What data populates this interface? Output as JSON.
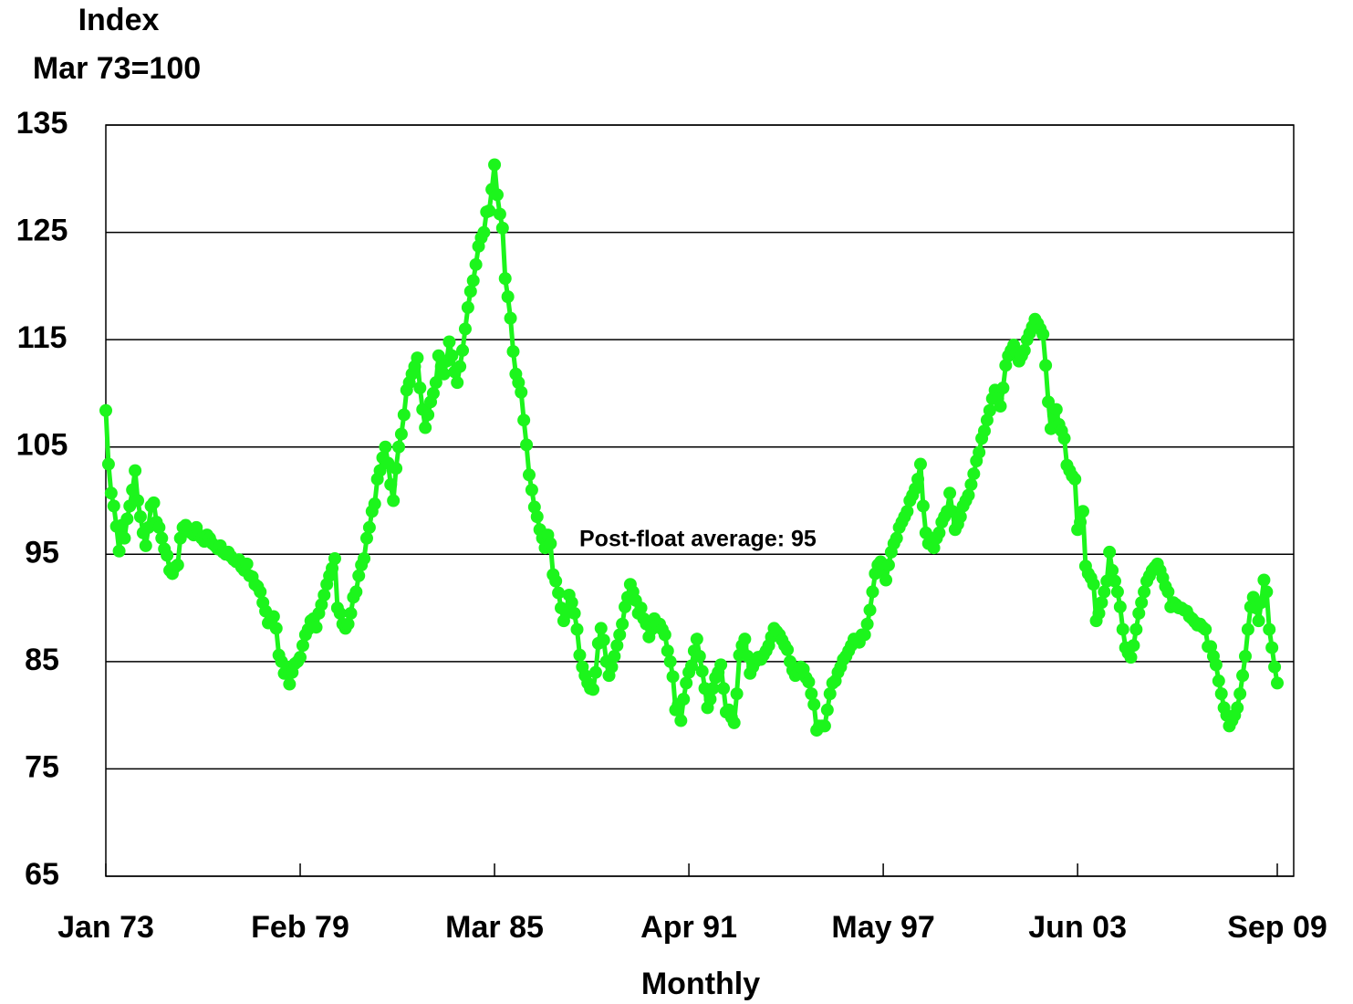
{
  "chart_data": {
    "type": "line",
    "y_title_lines": [
      "Index",
      "Mar 73=100"
    ],
    "x_title": "Monthly",
    "annotation": "Post-float average: 95",
    "color": "#1cf51c",
    "grid": true,
    "ylim": [
      65,
      135
    ],
    "yticks": [
      65,
      75,
      85,
      95,
      105,
      115,
      125,
      135
    ],
    "categories": [
      "Jan 73",
      null,
      null,
      null,
      null,
      null,
      null,
      null,
      null,
      null,
      null,
      null,
      null,
      null,
      null,
      null,
      null,
      null,
      null,
      null,
      null,
      null,
      null,
      null,
      null,
      null,
      null,
      null,
      null,
      null,
      null,
      null,
      null,
      null,
      null,
      null,
      null,
      null,
      null,
      null,
      null,
      null,
      null,
      null,
      null,
      null,
      null,
      null,
      null,
      null,
      null,
      null,
      null,
      null,
      null,
      null,
      null,
      null,
      null,
      null,
      null,
      null,
      null,
      null,
      null,
      null,
      null,
      null,
      null,
      null,
      null,
      null,
      null,
      "Feb 79",
      null,
      null,
      null,
      null,
      null,
      null,
      null,
      null,
      null,
      null,
      null,
      null,
      null,
      null,
      null,
      null,
      null,
      null,
      null,
      null,
      null,
      null,
      null,
      null,
      null,
      null,
      null,
      null,
      null,
      null,
      null,
      null,
      null,
      null,
      null,
      null,
      null,
      null,
      null,
      null,
      null,
      null,
      null,
      null,
      null,
      null,
      null,
      null,
      null,
      null,
      null,
      null,
      null,
      null,
      null,
      null,
      null,
      null,
      null,
      null,
      null,
      null,
      null,
      null,
      null,
      null,
      null,
      null,
      null,
      null,
      null,
      null,
      "Mar 85",
      null,
      null,
      null,
      null,
      null,
      null,
      null,
      null,
      null,
      null,
      null,
      null,
      null,
      null,
      null,
      null,
      null,
      null,
      null,
      null,
      null,
      null,
      null,
      null,
      null,
      null,
      null,
      null,
      null,
      null,
      null,
      null,
      null,
      null,
      null,
      null,
      null,
      null,
      null,
      null,
      null,
      null,
      null,
      null,
      null,
      null,
      null,
      null,
      null,
      null,
      null,
      null,
      null,
      null,
      null,
      null,
      null,
      null,
      null,
      null,
      null,
      null,
      null,
      null,
      null,
      null,
      null,
      null,
      null,
      null,
      null,
      null,
      "Apr 91",
      null,
      null,
      null,
      null,
      null,
      null,
      null,
      null,
      null,
      null,
      null,
      null,
      null,
      null,
      null,
      null,
      null,
      null,
      null,
      null,
      null,
      null,
      null,
      null,
      null,
      null,
      null,
      null,
      null,
      null,
      null,
      null,
      null,
      null,
      null,
      null,
      null,
      null,
      null,
      null,
      null,
      null,
      null,
      null,
      null,
      null,
      null,
      null,
      null,
      null,
      null,
      null,
      null,
      null,
      null,
      null,
      null,
      null,
      null,
      null,
      null,
      null,
      null,
      null,
      null,
      null,
      null,
      null,
      null,
      null,
      null,
      null,
      "May 97",
      null,
      null,
      null,
      null,
      null,
      null,
      null,
      null,
      null,
      null,
      null,
      null,
      null,
      null,
      null,
      null,
      null,
      null,
      null,
      null,
      null,
      null,
      null,
      null,
      null,
      null,
      null,
      null,
      null,
      null,
      null,
      null,
      null,
      null,
      null,
      null,
      null,
      null,
      null,
      null,
      null,
      null,
      null,
      null,
      null,
      null,
      null,
      null,
      null,
      null,
      null,
      null,
      null,
      null,
      null,
      null,
      null,
      null,
      null,
      null,
      null,
      null,
      null,
      null,
      null,
      null,
      null,
      null,
      null,
      null,
      null,
      null,
      "Jun 03",
      null,
      null,
      null,
      null,
      null,
      null,
      null,
      null,
      null,
      null,
      null,
      null,
      null,
      null,
      null,
      null,
      null,
      null,
      null,
      null,
      null,
      null,
      null,
      null,
      null,
      null,
      null,
      null,
      null,
      null,
      null,
      null,
      null,
      null,
      null,
      null,
      null,
      null,
      null,
      null,
      null,
      null,
      null,
      null,
      null,
      null,
      null,
      null,
      null,
      null,
      null,
      null,
      null,
      null,
      null,
      null,
      null,
      null,
      null,
      null,
      null,
      null,
      null,
      null,
      null,
      null,
      null,
      null,
      null,
      null,
      null,
      null,
      null,
      null,
      "Sep 09"
    ],
    "values": [
      108.4,
      103.4,
      100.7,
      99.5,
      97.6,
      95.3,
      97.7,
      96.5,
      98.3,
      99.5,
      101,
      102.8,
      100,
      98.5,
      97,
      95.8,
      97.5,
      99.5,
      99.8,
      98,
      97.5,
      96.5,
      95.5,
      94.9,
      93.5,
      93.2,
      93.8,
      94,
      96.5,
      97.5,
      97.7,
      97.2,
      97,
      96.8,
      97.5,
      96.8,
      96.5,
      96.2,
      96.8,
      96.5,
      96,
      95.8,
      95.5,
      95.8,
      95.2,
      95,
      95.2,
      94.8,
      94.5,
      94.3,
      94.5,
      93.8,
      93.5,
      94.1,
      93,
      92.9,
      92.2,
      92,
      91.5,
      90.5,
      89.7,
      88.6,
      88.8,
      89.2,
      88.1,
      85.6,
      85,
      83.9,
      84.5,
      82.9,
      84,
      84.8,
      85,
      85.4,
      86.5,
      87.5,
      88,
      88.8,
      89,
      88.2,
      89.5,
      90.3,
      91.2,
      92.2,
      93,
      93.7,
      94.6,
      90,
      89.5,
      88.5,
      88.1,
      88.5,
      89.5,
      91,
      91.5,
      93,
      94,
      94.6,
      96.5,
      97.5,
      99,
      99.7,
      102,
      102.8,
      104,
      105,
      103.5,
      101.5,
      100,
      103,
      105,
      106.2,
      108,
      110.3,
      111,
      111.8,
      112.5,
      113.3,
      110.5,
      108.5,
      106.8,
      108,
      109.2,
      110,
      111,
      113.5,
      112.5,
      111.8,
      113,
      114.8,
      113.5,
      112,
      111,
      112.5,
      114,
      116,
      118,
      119.5,
      120.5,
      122,
      123.7,
      124.5,
      125,
      126.9,
      127,
      129,
      131.3,
      128.5,
      126.7,
      125.4,
      120.7,
      119,
      117,
      113.9,
      111.8,
      111,
      110.1,
      107.5,
      105.2,
      102.4,
      101,
      99.4,
      98.5,
      97.3,
      96.5,
      95.6,
      96.8,
      96,
      93.1,
      92.5,
      91.4,
      90,
      88.8,
      89.5,
      91.2,
      90.5,
      89.5,
      88,
      85.6,
      84.5,
      83.7,
      83,
      82.5,
      82.4,
      84,
      86.7,
      88.1,
      87,
      85,
      83.7,
      84.5,
      85.5,
      86.5,
      87.5,
      88.5,
      90.1,
      91,
      92.2,
      91.5,
      90.7,
      89.5,
      90,
      89,
      88.5,
      87.3,
      88,
      89,
      88.5,
      88.5,
      88,
      87.5,
      86,
      85,
      83.6,
      80.5,
      81,
      79.5,
      81.5,
      83,
      84,
      84.6,
      86,
      87.1,
      85.5,
      84.1,
      82.5,
      80.7,
      81.5,
      82.5,
      83.5,
      84,
      84.7,
      82.5,
      80.3,
      80.5,
      79.8,
      79.3,
      82,
      85.6,
      86.5,
      87.1,
      85.5,
      83.9,
      84.5,
      85,
      85.4,
      85.2,
      85.6,
      86,
      86.5,
      87.3,
      88.1,
      87.8,
      87.5,
      87,
      86.5,
      86.1,
      85,
      84.2,
      83.7,
      84,
      84.5,
      84.3,
      83.5,
      83.1,
      82,
      81,
      78.6,
      79,
      79,
      79,
      80.5,
      82,
      83,
      83.2,
      84,
      84.5,
      85.2,
      85.5,
      86,
      86.5,
      87.1,
      87,
      86.8,
      87.5,
      87.5,
      88.5,
      89.8,
      91.5,
      93.2,
      94,
      94.3,
      93.5,
      92.6,
      94,
      95.2,
      96,
      96.5,
      97.5,
      98,
      98.5,
      99,
      100,
      100.5,
      101.1,
      102,
      103.4,
      99.5,
      97,
      96,
      96.5,
      95.6,
      96.5,
      97,
      98,
      98.5,
      99,
      100.7,
      99,
      97.3,
      97.8,
      98.5,
      99.5,
      100,
      100.5,
      101.5,
      102.5,
      103.7,
      104.5,
      105.8,
      106.5,
      107.5,
      108.4,
      109.5,
      110.3,
      109.5,
      108.8,
      110.5,
      112.6,
      113.5,
      114,
      114.5,
      113.8,
      113,
      113.5,
      114,
      115,
      115.6,
      116.2,
      116.9,
      116.5,
      116,
      115.5,
      112.6,
      109.2,
      106.7,
      108,
      108.5,
      107.1,
      106.5,
      105.8,
      103.3,
      102.8,
      102.3,
      102,
      97.3,
      98,
      99,
      93.9,
      93.2,
      92.8,
      92.2,
      88.8,
      89.5,
      90.5,
      91.5,
      92.5,
      95.2,
      93.5,
      92.5,
      91.5,
      90.1,
      88,
      86.3,
      85.8,
      85.4,
      86.5,
      88,
      89.5,
      90.5,
      91.5,
      92.5,
      93,
      93.5,
      93.8,
      94.1,
      93.5,
      92.8,
      92,
      91.5,
      90.1,
      90.5,
      90.3,
      90,
      90,
      89.8,
      89.7,
      89.2,
      89,
      88.7,
      88.4,
      88.5,
      88.2,
      88,
      86.4,
      86.4,
      85.5,
      84.7,
      83.2,
      82,
      80.7,
      80,
      79,
      79.5,
      80,
      80.7,
      82,
      83.7,
      85.5,
      88,
      90.1,
      91,
      90,
      88.8,
      90.5,
      92.6,
      91.5,
      88,
      86.3,
      84.5,
      83
    ]
  }
}
